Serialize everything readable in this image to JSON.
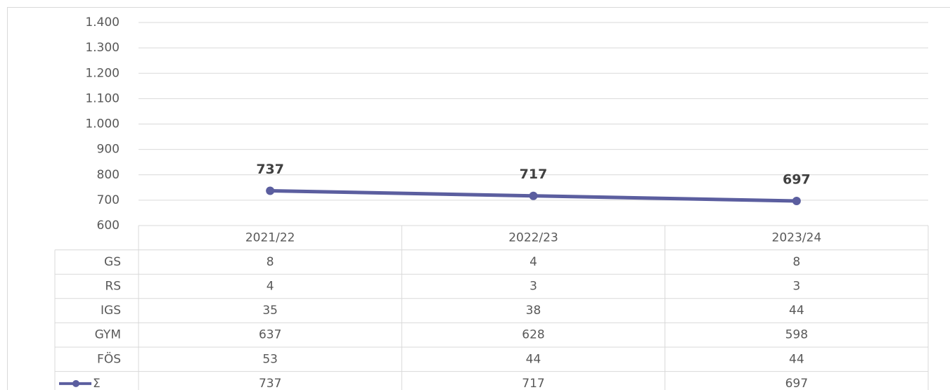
{
  "chart_data": {
    "type": "line",
    "categories": [
      "2021/22",
      "2022/23",
      "2023/24"
    ],
    "series": [
      {
        "name": "Σ",
        "color": "#5b5e9f",
        "values": [
          737,
          717,
          697
        ]
      }
    ],
    "ylim": [
      600,
      1400
    ],
    "yticks": [
      600,
      700,
      800,
      900,
      {
        "value": 1000,
        "label": "1.000"
      },
      {
        "value": 1100,
        "label": "1.100"
      },
      {
        "value": 1200,
        "label": "1.200"
      },
      {
        "value": 1300,
        "label": "1.300"
      },
      {
        "value": 1400,
        "label": "1.400"
      }
    ],
    "grid": true,
    "table": {
      "rows": [
        {
          "name": "GS",
          "values": [
            8,
            4,
            8
          ]
        },
        {
          "name": "RS",
          "values": [
            4,
            3,
            3
          ]
        },
        {
          "name": "IGS",
          "values": [
            35,
            38,
            44
          ]
        },
        {
          "name": "GYM",
          "values": [
            637,
            628,
            598
          ]
        },
        {
          "name": "FÖS",
          "values": [
            53,
            44,
            44
          ]
        }
      ]
    }
  }
}
